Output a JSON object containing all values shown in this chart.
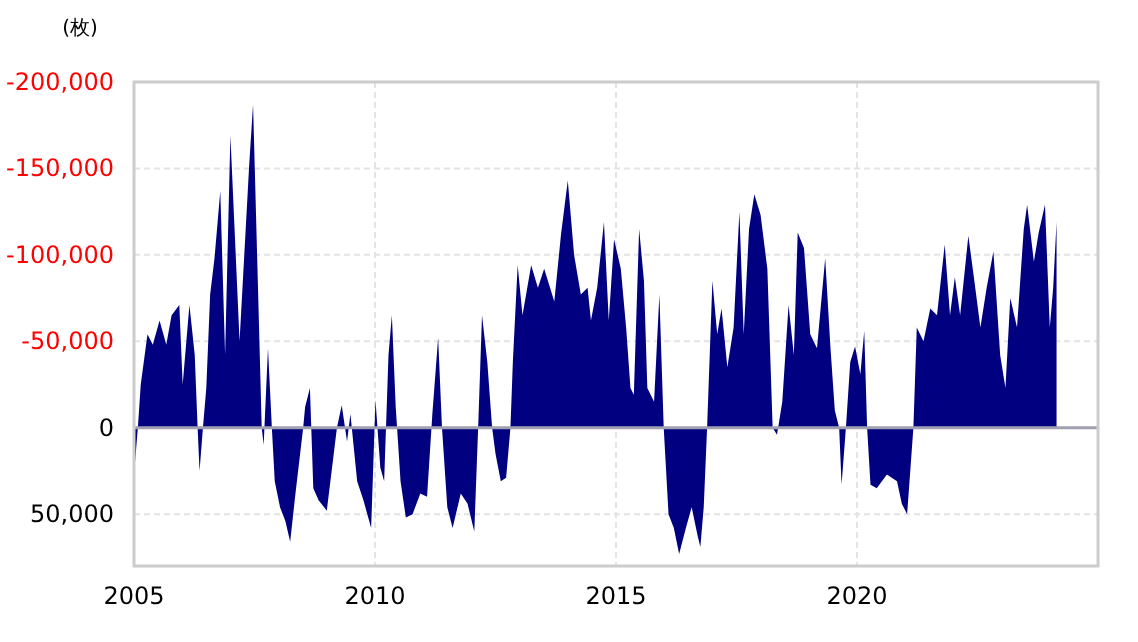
{
  "chart_data": {
    "type": "area",
    "ylabel": "(枚)",
    "xlim": [
      2005,
      2025
    ],
    "xticks": [
      2005,
      2010,
      2015,
      2020
    ],
    "ylim": [
      80000,
      -200000
    ],
    "yticks": [
      {
        "value": -200000,
        "label": "-200,000"
      },
      {
        "value": -150000,
        "label": "-150,000"
      },
      {
        "value": -100000,
        "label": "-100,000"
      },
      {
        "value": -50000,
        "label": "-50,000"
      },
      0,
      {
        "value": 50000,
        "label": "50,000"
      }
    ],
    "grid": true,
    "series": [
      {
        "color": "#000080",
        "x": [
          2005.0,
          2005.08,
          2005.14,
          2005.28,
          2005.39,
          2005.53,
          2005.67,
          2005.78,
          2005.94,
          2006.01,
          2006.15,
          2006.26,
          2006.32,
          2006.36,
          2006.43,
          2006.5,
          2006.58,
          2006.67,
          2006.79,
          2006.89,
          2007.0,
          2007.08,
          2007.19,
          2007.39,
          2007.47,
          2007.58,
          2007.65,
          2007.69,
          2007.78,
          2007.86,
          2007.92,
          2008.03,
          2008.14,
          2008.24,
          2008.35,
          2008.51,
          2008.55,
          2008.65,
          2008.72,
          2008.83,
          2009.0,
          2009.21,
          2009.31,
          2009.42,
          2009.49,
          2009.63,
          2009.76,
          2009.92,
          2010.01,
          2010.11,
          2010.19,
          2010.28,
          2010.35,
          2010.43,
          2010.53,
          2010.64,
          2010.78,
          2010.94,
          2011.08,
          2011.19,
          2011.31,
          2011.39,
          2011.5,
          2011.61,
          2011.78,
          2011.92,
          2012.06,
          2012.14,
          2012.22,
          2012.33,
          2012.43,
          2012.5,
          2012.61,
          2012.72,
          2012.81,
          2012.86,
          2012.96,
          2013.06,
          2013.24,
          2013.38,
          2013.51,
          2013.72,
          2013.86,
          2014.0,
          2014.13,
          2014.27,
          2014.41,
          2014.48,
          2014.61,
          2014.75,
          2014.85,
          2014.96,
          2015.1,
          2015.21,
          2015.3,
          2015.37,
          2015.48,
          2015.58,
          2015.65,
          2015.79,
          2015.9,
          2015.99,
          2016.09,
          2016.2,
          2016.31,
          2016.45,
          2016.57,
          2016.69,
          2016.75,
          2016.82,
          2016.89,
          2017.0,
          2017.1,
          2017.19,
          2017.31,
          2017.44,
          2017.56,
          2017.65,
          2017.76,
          2017.87,
          2018.0,
          2018.14,
          2018.25,
          2018.34,
          2018.45,
          2018.58,
          2018.69,
          2018.77,
          2018.9,
          2019.03,
          2019.17,
          2019.34,
          2019.45,
          2019.54,
          2019.63,
          2019.68,
          2019.77,
          2019.86,
          2019.96,
          2020.07,
          2020.15,
          2020.21,
          2020.28,
          2020.41,
          2020.62,
          2020.83,
          2020.93,
          2021.04,
          2021.17,
          2021.24,
          2021.38,
          2021.52,
          2021.66,
          2021.82,
          2021.93,
          2022.03,
          2022.14,
          2022.31,
          2022.42,
          2022.56,
          2022.69,
          2022.83,
          2022.97,
          2023.08,
          2023.18,
          2023.32,
          2023.46,
          2023.53,
          2023.67,
          2023.77,
          2023.9,
          2024.0,
          2024.07,
          2024.14
        ],
        "values": [
          27000,
          0,
          -25000,
          -54000,
          -48000,
          -62000,
          -48000,
          -65000,
          -71000,
          -25000,
          -71000,
          -42000,
          0,
          25000,
          0,
          -23000,
          -77000,
          -98000,
          -137000,
          -42000,
          -169000,
          -119000,
          -50000,
          -152000,
          -187000,
          -73000,
          0,
          10000,
          -46000,
          0,
          31000,
          46000,
          54000,
          66000,
          38000,
          0,
          -12000,
          -23000,
          35000,
          42000,
          48000,
          0,
          -13000,
          8000,
          -8000,
          31000,
          42000,
          58000,
          -16000,
          23000,
          31000,
          -42000,
          -65000,
          -12000,
          31000,
          52000,
          50000,
          38000,
          40000,
          -8000,
          -52000,
          0,
          46000,
          58000,
          38000,
          44000,
          60000,
          0,
          -65000,
          -38000,
          0,
          15000,
          31000,
          29000,
          0,
          -38000,
          -94000,
          -65000,
          -94000,
          -81000,
          -92000,
          -73000,
          -112000,
          -143000,
          -100000,
          -77000,
          -81000,
          -62000,
          -81000,
          -119000,
          -62000,
          -109000,
          -92000,
          -58000,
          -23000,
          -19000,
          -115000,
          -85000,
          -23000,
          -15000,
          -77000,
          0,
          50000,
          58000,
          73000,
          58000,
          46000,
          62000,
          69000,
          46000,
          0,
          -85000,
          -54000,
          -69000,
          -35000,
          -58000,
          -125000,
          -54000,
          -115000,
          -135000,
          -123000,
          -92000,
          0,
          4000,
          -15000,
          -71000,
          -42000,
          -113000,
          -104000,
          -54000,
          -46000,
          -98000,
          -46000,
          -10000,
          0,
          33000,
          0,
          -38000,
          -47000,
          -31000,
          -56000,
          0,
          33000,
          35000,
          27000,
          31000,
          44000,
          50000,
          0,
          -58000,
          -50000,
          -69000,
          -65000,
          -106000,
          -65000,
          -87000,
          -65000,
          -111000,
          -88000,
          -58000,
          -81000,
          -102000,
          -42000,
          -23000,
          -75000,
          -58000,
          -115000,
          -129000,
          -96000,
          -113000,
          -129000,
          -58000,
          -81000,
          -119000
        ]
      }
    ]
  }
}
